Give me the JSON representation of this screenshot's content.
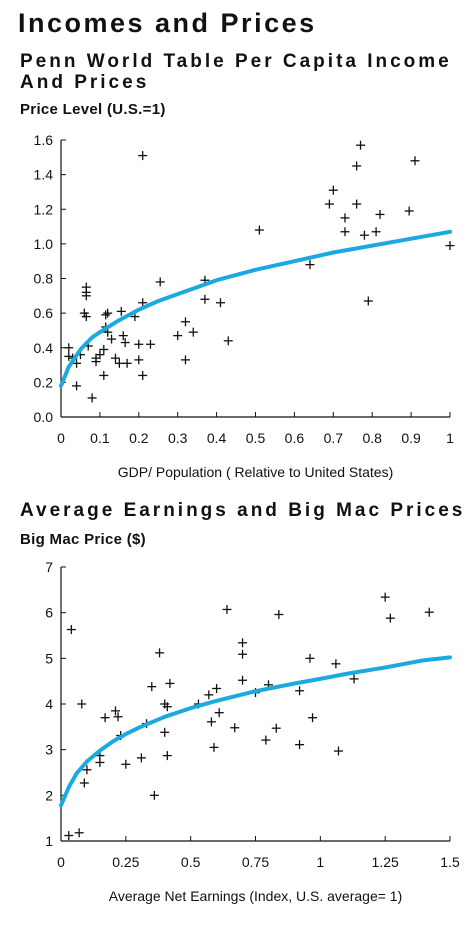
{
  "page": {
    "title": "Incomes and Prices"
  },
  "chart_data": [
    {
      "type": "scatter",
      "title_line1": "Penn World Table Per Capita Income",
      "title_line2": "And Prices",
      "ylabel": "Price Level (U.S.=1)",
      "xlabel": "GDP/ Population ( Relative to United States)",
      "xlim": [
        0,
        1
      ],
      "ylim": [
        0,
        1.6
      ],
      "xticks": [
        0,
        0.1,
        0.2,
        0.3,
        0.4,
        0.5,
        0.6,
        0.7,
        0.8,
        0.9,
        1
      ],
      "yticks": [
        0,
        0.2,
        0.4,
        0.6,
        0.8,
        1.0,
        1.2,
        1.4,
        1.6
      ],
      "grid": false,
      "marker": "+",
      "trend_color": "#1ba9e0",
      "trend": {
        "x": [
          0,
          0.02,
          0.05,
          0.08,
          0.1,
          0.15,
          0.2,
          0.25,
          0.3,
          0.35,
          0.4,
          0.5,
          0.6,
          0.7,
          0.8,
          0.9,
          1.0
        ],
        "y": [
          0.18,
          0.29,
          0.39,
          0.46,
          0.49,
          0.56,
          0.62,
          0.67,
          0.71,
          0.75,
          0.79,
          0.85,
          0.9,
          0.95,
          0.99,
          1.03,
          1.07
        ]
      },
      "points": [
        [
          0.21,
          1.51
        ],
        [
          0.02,
          0.4
        ],
        [
          0.02,
          0.35
        ],
        [
          0.03,
          0.34
        ],
        [
          0.04,
          0.31
        ],
        [
          0.05,
          0.36
        ],
        [
          0.04,
          0.18
        ],
        [
          0.06,
          0.6
        ],
        [
          0.065,
          0.58
        ],
        [
          0.065,
          0.75
        ],
        [
          0.065,
          0.72
        ],
        [
          0.065,
          0.7
        ],
        [
          0.07,
          0.41
        ],
        [
          0.08,
          0.11
        ],
        [
          0.09,
          0.32
        ],
        [
          0.09,
          0.34
        ],
        [
          0.1,
          0.36
        ],
        [
          0.11,
          0.24
        ],
        [
          0.11,
          0.39
        ],
        [
          0.115,
          0.52
        ],
        [
          0.115,
          0.59
        ],
        [
          0.12,
          0.6
        ],
        [
          0.12,
          0.49
        ],
        [
          0.13,
          0.45
        ],
        [
          0.14,
          0.34
        ],
        [
          0.15,
          0.31
        ],
        [
          0.155,
          0.61
        ],
        [
          0.16,
          0.47
        ],
        [
          0.165,
          0.43
        ],
        [
          0.17,
          0.31
        ],
        [
          0.19,
          0.58
        ],
        [
          0.2,
          0.33
        ],
        [
          0.2,
          0.42
        ],
        [
          0.21,
          0.24
        ],
        [
          0.21,
          0.66
        ],
        [
          0.23,
          0.42
        ],
        [
          0.255,
          0.78
        ],
        [
          0.3,
          0.47
        ],
        [
          0.32,
          0.55
        ],
        [
          0.32,
          0.33
        ],
        [
          0.34,
          0.49
        ],
        [
          0.37,
          0.79
        ],
        [
          0.37,
          0.68
        ],
        [
          0.41,
          0.66
        ],
        [
          0.43,
          0.44
        ],
        [
          0.51,
          1.08
        ],
        [
          0.64,
          0.88
        ],
        [
          0.69,
          1.23
        ],
        [
          0.7,
          1.31
        ],
        [
          0.73,
          1.15
        ],
        [
          0.73,
          1.07
        ],
        [
          0.76,
          1.23
        ],
        [
          0.76,
          1.45
        ],
        [
          0.77,
          1.57
        ],
        [
          0.78,
          1.05
        ],
        [
          0.79,
          0.67
        ],
        [
          0.81,
          1.07
        ],
        [
          0.82,
          1.17
        ],
        [
          0.895,
          1.19
        ],
        [
          0.91,
          1.48
        ],
        [
          1.0,
          0.99
        ]
      ]
    },
    {
      "type": "scatter",
      "title_line1": "Average Earnings and Big Mac Prices",
      "ylabel": "Big Mac Price ($)",
      "xlabel": "Average Net Earnings (Index, U.S. average= 1)",
      "xlim": [
        0,
        1.5
      ],
      "ylim": [
        1,
        7
      ],
      "xticks": [
        0,
        0.25,
        0.5,
        0.75,
        1,
        1.25,
        1.5
      ],
      "yticks": [
        1,
        2,
        3,
        4,
        5,
        6,
        7
      ],
      "grid": false,
      "marker": "+",
      "trend_color": "#1ba9e0",
      "trend": {
        "x": [
          0,
          0.03,
          0.06,
          0.1,
          0.15,
          0.2,
          0.25,
          0.3,
          0.4,
          0.5,
          0.6,
          0.75,
          0.9,
          1.0,
          1.1,
          1.25,
          1.4,
          1.5
        ],
        "y": [
          1.78,
          2.18,
          2.48,
          2.74,
          2.98,
          3.18,
          3.34,
          3.48,
          3.72,
          3.91,
          4.07,
          4.28,
          4.45,
          4.55,
          4.66,
          4.8,
          4.96,
          5.02
        ]
      },
      "points": [
        [
          0.03,
          1.12
        ],
        [
          0.07,
          1.18
        ],
        [
          0.04,
          5.63
        ],
        [
          0.08,
          4.0
        ],
        [
          0.09,
          2.27
        ],
        [
          0.1,
          2.56
        ],
        [
          0.15,
          2.72
        ],
        [
          0.15,
          2.87
        ],
        [
          0.17,
          3.7
        ],
        [
          0.21,
          3.85
        ],
        [
          0.22,
          3.72
        ],
        [
          0.23,
          3.31
        ],
        [
          0.25,
          2.68
        ],
        [
          0.31,
          2.82
        ],
        [
          0.33,
          3.57
        ],
        [
          0.35,
          4.38
        ],
        [
          0.36,
          2.0
        ],
        [
          0.38,
          5.12
        ],
        [
          0.4,
          4.0
        ],
        [
          0.4,
          3.38
        ],
        [
          0.41,
          3.94
        ],
        [
          0.41,
          2.87
        ],
        [
          0.42,
          4.45
        ],
        [
          0.53,
          4.0
        ],
        [
          0.57,
          4.2
        ],
        [
          0.58,
          3.61
        ],
        [
          0.59,
          3.05
        ],
        [
          0.6,
          4.34
        ],
        [
          0.61,
          3.81
        ],
        [
          0.64,
          6.07
        ],
        [
          0.67,
          3.48
        ],
        [
          0.7,
          5.34
        ],
        [
          0.7,
          5.09
        ],
        [
          0.7,
          4.52
        ],
        [
          0.75,
          4.25
        ],
        [
          0.79,
          3.21
        ],
        [
          0.8,
          4.42
        ],
        [
          0.83,
          3.47
        ],
        [
          0.84,
          5.96
        ],
        [
          0.92,
          3.11
        ],
        [
          0.92,
          4.29
        ],
        [
          0.96,
          5.0
        ],
        [
          0.97,
          3.7
        ],
        [
          1.06,
          4.88
        ],
        [
          1.07,
          2.97
        ],
        [
          1.13,
          4.55
        ],
        [
          1.25,
          6.34
        ],
        [
          1.27,
          5.88
        ],
        [
          1.42,
          6.01
        ]
      ]
    }
  ]
}
